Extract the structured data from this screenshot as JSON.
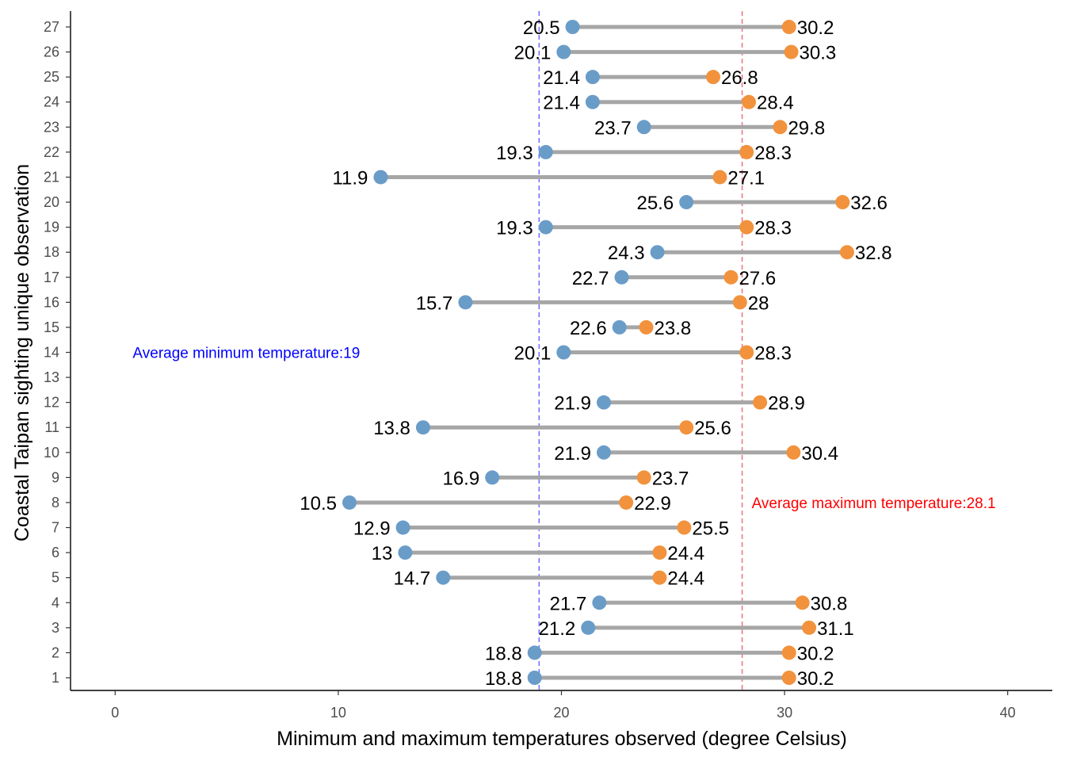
{
  "chart_data": {
    "type": "dumbbell",
    "xlabel": "Minimum and maximum temperatures observed (degree Celsius)",
    "ylabel": "Coastal Taipan sighting unique observation",
    "xlim": [
      -2,
      42
    ],
    "xticks": [
      "0",
      "10",
      "20",
      "30",
      "40"
    ],
    "categories": [
      "1",
      "2",
      "3",
      "4",
      "5",
      "6",
      "7",
      "8",
      "9",
      "10",
      "11",
      "12",
      "13",
      "14",
      "15",
      "16",
      "17",
      "18",
      "19",
      "20",
      "21",
      "22",
      "23",
      "24",
      "25",
      "26",
      "27"
    ],
    "min_values": [
      18.8,
      18.8,
      21.2,
      21.7,
      14.7,
      13,
      12.9,
      10.5,
      16.9,
      21.9,
      13.8,
      21.9,
      null,
      20.1,
      22.6,
      15.7,
      22.7,
      24.3,
      19.3,
      25.6,
      11.9,
      19.3,
      23.7,
      21.4,
      21.4,
      20.1,
      20.5
    ],
    "max_values": [
      30.2,
      30.2,
      31.1,
      30.8,
      24.4,
      24.4,
      25.5,
      22.9,
      23.7,
      30.4,
      25.6,
      28.9,
      null,
      28.3,
      23.8,
      28,
      27.6,
      32.8,
      28.3,
      32.6,
      27.1,
      28.3,
      29.8,
      28.4,
      26.8,
      30.3,
      30.2
    ],
    "min_labels": [
      "18.8",
      "18.8",
      "21.2",
      "21.7",
      "14.7",
      "13",
      "12.9",
      "10.5",
      "16.9",
      "21.9",
      "13.8",
      "21.9",
      "",
      "20.1",
      "22.6",
      "15.7",
      "22.7",
      "24.3",
      "19.3",
      "25.6",
      "11.9",
      "19.3",
      "23.7",
      "21.4",
      "21.4",
      "20.1",
      "20.5"
    ],
    "max_labels": [
      "30.2",
      "30.2",
      "31.1",
      "30.8",
      "24.4",
      "24.4",
      "25.5",
      "22.9",
      "23.7",
      "30.4",
      "25.6",
      "28.9",
      "",
      "28.3",
      "23.8",
      "28",
      "27.6",
      "32.8",
      "28.3",
      "32.6",
      "27.1",
      "28.3",
      "29.8",
      "28.4",
      "26.8",
      "30.3",
      "30.2"
    ],
    "reference_lines": [
      {
        "value": 19,
        "color": "#6b6bff",
        "style": "dashed",
        "label": "Average minimum temperature:19",
        "label_color": "#0000ff",
        "label_at": 14,
        "label_side": "left"
      },
      {
        "value": 28.1,
        "color": "#f07080",
        "style": "dashed",
        "label": "Average maximum temperature:28.1",
        "label_color": "#ff0000",
        "label_at": 8,
        "label_side": "right"
      }
    ],
    "colors": {
      "min_point": "#6a9cc8",
      "max_point": "#f2923c",
      "segment": "#a6a6a6"
    },
    "grid": false
  }
}
